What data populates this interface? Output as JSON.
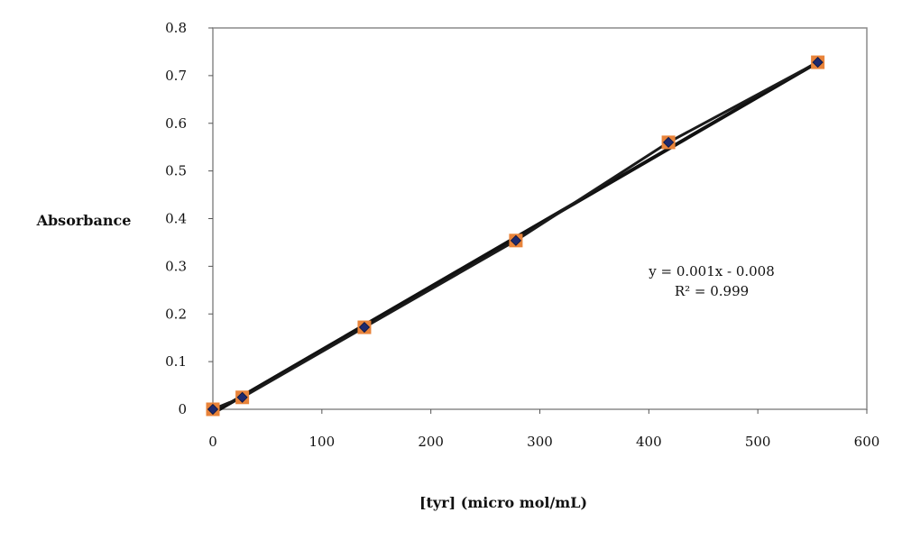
{
  "chart_data": {
    "type": "scatter",
    "xlabel": "[tyr] (micro mol/mL)",
    "ylabel": "Absorbance",
    "xlim": [
      0,
      600
    ],
    "ylim": [
      0,
      0.8
    ],
    "x_ticks": [
      "0",
      "100",
      "200",
      "300",
      "400",
      "500",
      "600"
    ],
    "y_ticks": [
      "0",
      "0.1",
      "0.2",
      "0.3",
      "0.4",
      "0.5",
      "0.6",
      "0.7",
      "0.8"
    ],
    "grid": false,
    "series": [
      {
        "x": [
          0,
          27,
          139,
          278,
          418,
          555
        ],
        "y": [
          0,
          0.025,
          0.172,
          0.354,
          0.56,
          0.728
        ],
        "marker": "square",
        "color": "#e8833a"
      },
      {
        "x": [
          0,
          27,
          139,
          278,
          418,
          555
        ],
        "y": [
          0,
          0.025,
          0.172,
          0.354,
          0.56,
          0.728
        ],
        "marker": "diamond",
        "color": "#1e2a6e",
        "connected": true
      }
    ],
    "trendline": {
      "x": [
        0,
        555
      ],
      "y": [
        -0.008,
        0.728
      ],
      "equation": "y = 0.001x - 0.008",
      "r_squared": "R² = 0.999"
    }
  }
}
